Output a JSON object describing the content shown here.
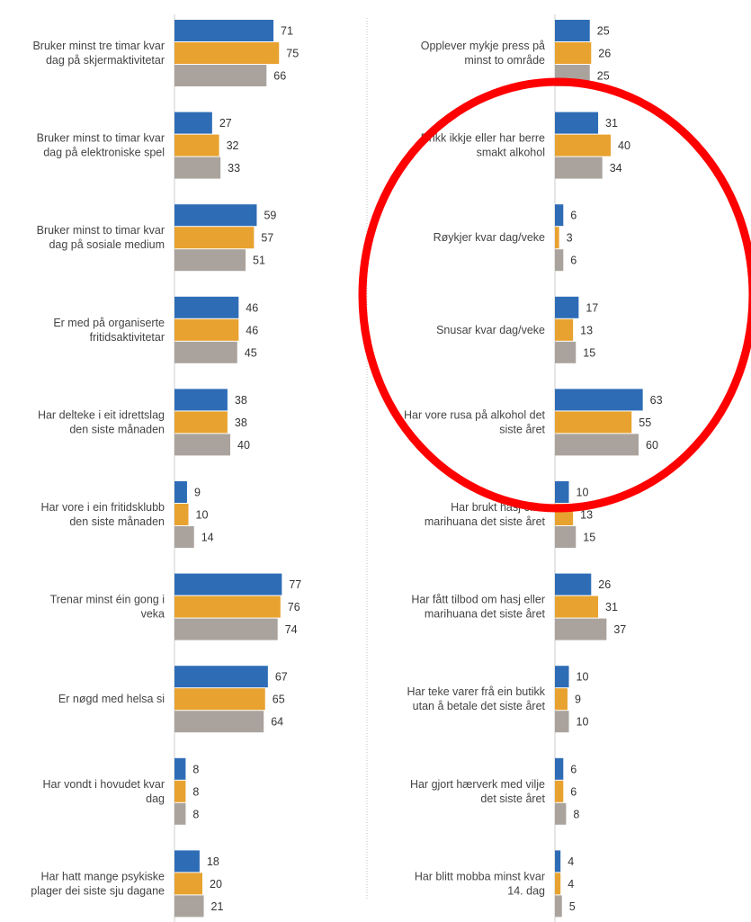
{
  "colors": {
    "blue": "#2e6db6",
    "orange": "#e8a230",
    "gray": "#aaa39d",
    "divider": "#cccccc",
    "axis": "#cccccc",
    "circle": "#ff0000"
  },
  "annotation": {
    "type": "circle",
    "color": "#ff0000",
    "encloses": [
      "Drikk ikkje eller har berre smakt alkohol",
      "Røykjer kvar dag/veke",
      "Snusar kvar dag/veke",
      "Har vore rusa på alkohol det siste året"
    ]
  },
  "chart_data": [
    {
      "type": "bar",
      "orientation": "horizontal",
      "series_colors": [
        "#2e6db6",
        "#e8a230",
        "#aaa39d"
      ],
      "groups": [
        {
          "label": [
            "Bruker minst tre timar kvar",
            "dag på skjermaktivitetar"
          ],
          "values": [
            71,
            75,
            66
          ]
        },
        {
          "label": [
            "Bruker minst to timar kvar",
            "dag på elektroniske spel"
          ],
          "values": [
            27,
            32,
            33
          ]
        },
        {
          "label": [
            "Bruker minst to timar kvar",
            "dag på sosiale medium"
          ],
          "values": [
            59,
            57,
            51
          ]
        },
        {
          "label": [
            "Er med på organiserte",
            "fritidsaktivitetar"
          ],
          "values": [
            46,
            46,
            45
          ]
        },
        {
          "label": [
            "Har delteke i eit idrettslag",
            "den siste månaden"
          ],
          "values": [
            38,
            38,
            40
          ]
        },
        {
          "label": [
            "Har vore i ein fritidsklubb",
            "den siste månaden"
          ],
          "values": [
            9,
            10,
            14
          ]
        },
        {
          "label": [
            "Trenar minst éin gong i",
            "veka"
          ],
          "values": [
            77,
            76,
            74
          ]
        },
        {
          "label": [
            "Er nøgd med helsa si"
          ],
          "values": [
            67,
            65,
            64
          ]
        },
        {
          "label": [
            "Har vondt i hovudet kvar",
            "dag"
          ],
          "values": [
            8,
            8,
            8
          ]
        },
        {
          "label": [
            "Har hatt mange psykiske",
            "plager dei siste sju dagane"
          ],
          "values": [
            18,
            20,
            21
          ]
        }
      ]
    },
    {
      "type": "bar",
      "orientation": "horizontal",
      "series_colors": [
        "#2e6db6",
        "#e8a230",
        "#aaa39d"
      ],
      "groups": [
        {
          "label": [
            "Opplever mykje press på",
            "minst to område"
          ],
          "values": [
            25,
            26,
            25
          ]
        },
        {
          "label": [
            "Drikk ikkje eller har berre",
            "smakt alkohol"
          ],
          "values": [
            31,
            40,
            34
          ]
        },
        {
          "label": [
            "Røykjer kvar dag/veke"
          ],
          "values": [
            6,
            3,
            6
          ]
        },
        {
          "label": [
            "Snusar kvar dag/veke"
          ],
          "values": [
            17,
            13,
            15
          ]
        },
        {
          "label": [
            "Har vore rusa på alkohol det",
            "siste året"
          ],
          "values": [
            63,
            55,
            60
          ]
        },
        {
          "label": [
            "Har brukt hasj eller",
            "marihuana det siste året"
          ],
          "values": [
            10,
            13,
            15
          ]
        },
        {
          "label": [
            "Har fått tilbod om hasj eller",
            "marihuana det siste året"
          ],
          "values": [
            26,
            31,
            37
          ]
        },
        {
          "label": [
            "Har teke varer frå ein butikk",
            "utan å betale det siste året"
          ],
          "values": [
            10,
            9,
            10
          ]
        },
        {
          "label": [
            "Har gjort hærverk med vilje",
            "det siste året"
          ],
          "values": [
            6,
            6,
            8
          ]
        },
        {
          "label": [
            "Har blitt mobba minst kvar",
            "14. dag"
          ],
          "values": [
            4,
            4,
            5
          ]
        }
      ]
    }
  ]
}
